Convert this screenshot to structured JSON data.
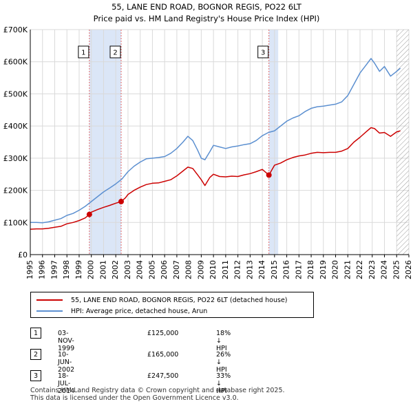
{
  "header": {
    "title_line1": "55, LANE END ROAD, BOGNOR REGIS, PO22 6LT",
    "title_line2": "Price paid vs. HM Land Registry's House Price Index (HPI)"
  },
  "chart_data": {
    "type": "line",
    "title": "55, LANE END ROAD, BOGNOR REGIS, PO22 6LT — Price paid vs. HM Land Registry's House Price Index (HPI)",
    "xlim": [
      1995,
      2026
    ],
    "ylim": [
      0,
      700000
    ],
    "y_ticks": [
      0,
      100000,
      200000,
      300000,
      400000,
      500000,
      600000,
      700000
    ],
    "y_tick_labels": [
      "£0",
      "£100K",
      "£200K",
      "£300K",
      "£400K",
      "£500K",
      "£600K",
      "£700K"
    ],
    "x_ticks": [
      1995,
      1996,
      1997,
      1998,
      1999,
      2000,
      2001,
      2002,
      2003,
      2004,
      2005,
      2006,
      2007,
      2008,
      2009,
      2010,
      2011,
      2012,
      2013,
      2014,
      2015,
      2016,
      2017,
      2018,
      2019,
      2020,
      2021,
      2022,
      2023,
      2024,
      2025,
      2026
    ],
    "grid": true,
    "colors": {
      "property": "#cc0000",
      "hpi": "#5b8fd0",
      "shade": "#dbe6f7",
      "marker_line": "#e06666",
      "hatch": "#999999"
    },
    "series": [
      {
        "name": "55, LANE END ROAD, BOGNOR REGIS, PO22 6LT (detached house)",
        "key": "property",
        "x": [
          1995.0,
          1995.5,
          1996.0,
          1996.5,
          1997.0,
          1997.5,
          1998.0,
          1998.5,
          1999.0,
          1999.5,
          1999.84,
          2000.0,
          2000.5,
          2001.0,
          2001.5,
          2002.0,
          2002.44,
          2002.8,
          2003.0,
          2003.5,
          2004.0,
          2004.5,
          2005.0,
          2005.5,
          2006.0,
          2006.5,
          2007.0,
          2007.5,
          2007.9,
          2008.3,
          2008.7,
          2009.0,
          2009.3,
          2009.7,
          2010.0,
          2010.5,
          2011.0,
          2011.5,
          2012.0,
          2012.5,
          2013.0,
          2013.5,
          2014.0,
          2014.54,
          2015.0,
          2015.5,
          2016.0,
          2016.5,
          2017.0,
          2017.5,
          2018.0,
          2018.5,
          2019.0,
          2019.5,
          2020.0,
          2020.5,
          2021.0,
          2021.5,
          2022.0,
          2022.5,
          2022.9,
          2023.2,
          2023.6,
          2024.0,
          2024.5,
          2025.0,
          2025.3
        ],
        "values": [
          79000,
          80000,
          80000,
          82000,
          85000,
          88000,
          96000,
          100000,
          106000,
          114000,
          125000,
          132000,
          140000,
          147000,
          153000,
          160000,
          165000,
          177000,
          187000,
          200000,
          210000,
          218000,
          222000,
          223000,
          228000,
          233000,
          245000,
          260000,
          272000,
          268000,
          248000,
          233000,
          215000,
          240000,
          250000,
          243000,
          242000,
          244000,
          243000,
          248000,
          252000,
          258000,
          265000,
          247500,
          278000,
          285000,
          295000,
          302000,
          307000,
          310000,
          315000,
          318000,
          317000,
          318000,
          318000,
          322000,
          330000,
          350000,
          365000,
          382000,
          395000,
          392000,
          378000,
          380000,
          368000,
          382000,
          385000
        ]
      },
      {
        "name": "HPI: Average price, detached house, Arun",
        "key": "hpi",
        "x": [
          1995.0,
          1995.5,
          1996.0,
          1996.5,
          1997.0,
          1997.5,
          1998.0,
          1998.5,
          1999.0,
          1999.5,
          2000.0,
          2000.5,
          2001.0,
          2001.5,
          2002.0,
          2002.5,
          2003.0,
          2003.5,
          2004.0,
          2004.5,
          2005.0,
          2005.5,
          2006.0,
          2006.5,
          2007.0,
          2007.5,
          2007.9,
          2008.3,
          2008.7,
          2009.0,
          2009.3,
          2009.7,
          2010.0,
          2010.5,
          2011.0,
          2011.5,
          2012.0,
          2012.5,
          2013.0,
          2013.5,
          2014.0,
          2014.5,
          2015.0,
          2015.5,
          2016.0,
          2016.5,
          2017.0,
          2017.5,
          2018.0,
          2018.5,
          2019.0,
          2019.5,
          2020.0,
          2020.5,
          2021.0,
          2021.5,
          2022.0,
          2022.5,
          2022.9,
          2023.2,
          2023.6,
          2024.0,
          2024.5,
          2025.0,
          2025.3
        ],
        "values": [
          100000,
          100000,
          99000,
          102000,
          107000,
          112000,
          122000,
          128000,
          138000,
          150000,
          165000,
          180000,
          195000,
          207000,
          220000,
          235000,
          258000,
          275000,
          288000,
          298000,
          300000,
          302000,
          305000,
          315000,
          330000,
          350000,
          368000,
          355000,
          325000,
          300000,
          295000,
          320000,
          340000,
          335000,
          330000,
          335000,
          338000,
          342000,
          345000,
          355000,
          370000,
          380000,
          385000,
          400000,
          415000,
          425000,
          432000,
          445000,
          455000,
          460000,
          462000,
          465000,
          468000,
          475000,
          495000,
          530000,
          565000,
          590000,
          610000,
          595000,
          570000,
          585000,
          555000,
          570000,
          580000
        ]
      }
    ],
    "sales": [
      {
        "n": "1",
        "x": 1999.84,
        "value": 125000
      },
      {
        "n": "2",
        "x": 2002.44,
        "value": 165000
      },
      {
        "n": "3",
        "x": 2014.54,
        "value": 247500
      }
    ],
    "shaded_ranges": [
      [
        1999.84,
        2002.44
      ],
      [
        2014.54,
        2015.3
      ]
    ],
    "hatched_from": 2025.0
  },
  "legend": {
    "property_label": "55, LANE END ROAD, BOGNOR REGIS, PO22 6LT (detached house)",
    "hpi_label": "HPI: Average price, detached house, Arun"
  },
  "transactions": [
    {
      "num": "1",
      "date": "03-NOV-1999",
      "price": "£125,000",
      "hpi": "18% ↓ HPI"
    },
    {
      "num": "2",
      "date": "10-JUN-2002",
      "price": "£165,000",
      "hpi": "26% ↓ HPI"
    },
    {
      "num": "3",
      "date": "18-JUL-2014",
      "price": "£247,500",
      "hpi": "33% ↓ HPI"
    }
  ],
  "footer": {
    "line1": "Contains HM Land Registry data © Crown copyright and database right 2025.",
    "line2": "This data is licensed under the Open Government Licence v3.0."
  }
}
